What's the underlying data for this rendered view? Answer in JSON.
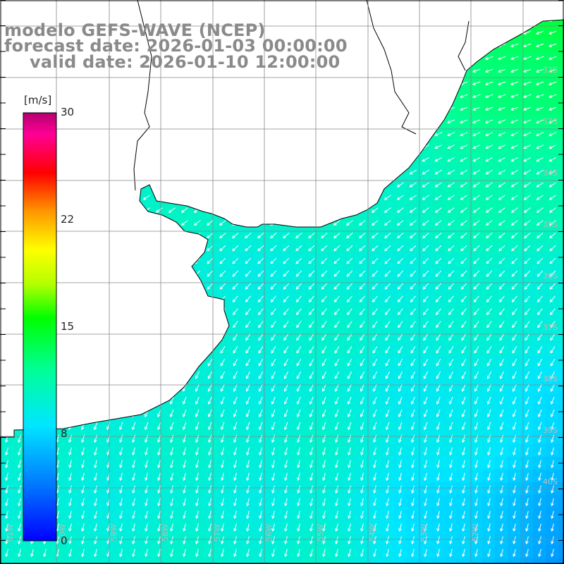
{
  "title": {
    "line1": "modelo GEFS-WAVE (NCEP)",
    "line2": "forecast date: 2026-01-03 00:00:00",
    "line3": "valid date: 2026-01-10 12:00:00"
  },
  "colorbar": {
    "unit": "[m/s]",
    "ticks": [
      "30",
      "22",
      "15",
      "8",
      "0"
    ],
    "range": [
      0,
      30
    ],
    "colors": [
      "#0000ff",
      "#00b4ff",
      "#00ffe6",
      "#00ff00",
      "#ffff00",
      "#ff7f00",
      "#ff0000",
      "#ff00ff",
      "#c8006e"
    ]
  },
  "lat_labels": [
    "32S",
    "33S",
    "34S",
    "35S",
    "36S",
    "37S",
    "38S",
    "39S",
    "40S"
  ],
  "lon_labels": [
    "61W",
    "60W",
    "59W",
    "58W",
    "57W",
    "56W",
    "55W",
    "54W",
    "53W",
    "52W"
  ],
  "land_color": "#ffffff",
  "grid_color": "#888888",
  "vector_color": "#ffffff",
  "wind_direction": "from northeast (southwest-pointing arrows)"
}
